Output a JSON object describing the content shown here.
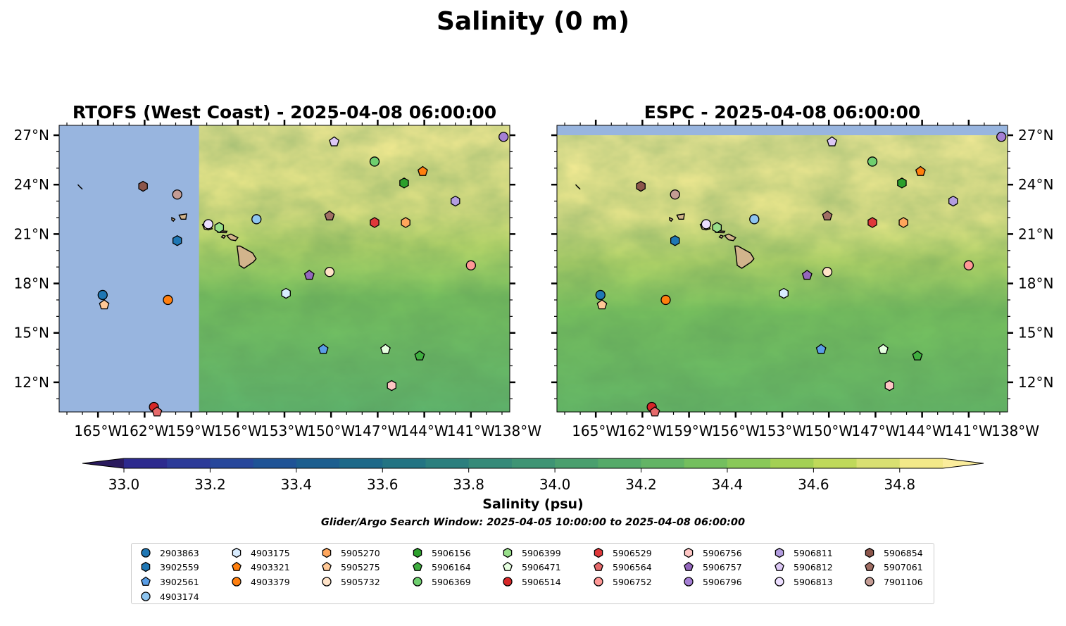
{
  "figure": {
    "suptitle": "Salinity (0 m)",
    "panels": [
      {
        "title": "RTOFS (West Coast) - 2025-04-08 06:00:00"
      },
      {
        "title": "ESPC - 2025-04-08 06:00:00"
      }
    ],
    "colorbar_label": "Salinity (psu)",
    "search_window": "Glider/Argo Search Window: 2025-04-05 10:00:00 to 2025-04-08 06:00:00",
    "colors": {
      "ocean_nodata": "#98b5df",
      "land": "#d2b48c",
      "colormap": [
        "#2a1a5e",
        "#2d2a8e",
        "#2c3a98",
        "#27479b",
        "#1f5396",
        "#1c5e8f",
        "#1d6989",
        "#237483",
        "#2b7f7e",
        "#358a79",
        "#3e9474",
        "#4a9f6e",
        "#55aa69",
        "#63b465",
        "#74bf5e",
        "#89c858",
        "#a3d054",
        "#bfd95a",
        "#d9e072",
        "#f3e989",
        "#fbed9c"
      ]
    }
  },
  "chart_data": {
    "type": "heatmap",
    "title": "Salinity (0 m)",
    "colorbar": {
      "label": "Salinity (psu)",
      "min": 33.0,
      "max": 34.9,
      "step": 0.1,
      "extend": "both",
      "ticks": [
        "33.0",
        "33.2",
        "33.4",
        "33.6",
        "33.8",
        "34.0",
        "34.2",
        "34.4",
        "34.6",
        "34.8"
      ]
    },
    "map": {
      "lon_range": [
        -167.5,
        -138.5
      ],
      "lat_range": [
        10.2,
        27.6
      ],
      "x_ticks": [
        -165,
        -162,
        -159,
        -156,
        -153,
        -150,
        -147,
        -144,
        -141,
        -138
      ],
      "x_tick_labels": [
        "165°W",
        "162°W",
        "159°W",
        "156°W",
        "153°W",
        "150°W",
        "147°W",
        "144°W",
        "141°W",
        "138°W"
      ],
      "y_ticks": [
        12,
        15,
        18,
        21,
        24,
        27
      ],
      "y_tick_labels": [
        "12°N",
        "15°N",
        "18°N",
        "21°N",
        "24°N",
        "27°N"
      ]
    },
    "panels": [
      {
        "name": "RTOFS (West Coast)",
        "time": "2025-04-08 06:00:00",
        "no_data_west_of_lon": -158.5,
        "no_data_north_of_lat": null
      },
      {
        "name": "ESPC",
        "time": "2025-04-08 06:00:00",
        "no_data_west_of_lon": null,
        "no_data_north_of_lat": 27.0
      }
    ],
    "platforms": [
      {
        "id": "2903863",
        "marker": "circle",
        "color": "#1f77b4",
        "lon": -164.7,
        "lat": 17.3
      },
      {
        "id": "3902559",
        "marker": "hexagon",
        "color": "#1f77b4",
        "lon": -159.9,
        "lat": 20.6
      },
      {
        "id": "3902561",
        "marker": "pentagon",
        "color": "#5a9ee6",
        "lon": -150.5,
        "lat": 14.0
      },
      {
        "id": "4903174",
        "marker": "circle",
        "color": "#8ec5f0",
        "lon": -154.8,
        "lat": 21.9
      },
      {
        "id": "4903175",
        "marker": "hexagon",
        "color": "#d8ecff",
        "lon": -152.9,
        "lat": 17.4
      },
      {
        "id": "4903321",
        "marker": "pentagon",
        "color": "#ff7f0e",
        "lon": -144.1,
        "lat": 24.8
      },
      {
        "id": "4903379",
        "marker": "circle",
        "color": "#ff7f0e",
        "lon": -160.5,
        "lat": 17.0
      },
      {
        "id": "5905270",
        "marker": "hexagon",
        "color": "#ffa65c",
        "lon": -145.2,
        "lat": 21.7
      },
      {
        "id": "5905275",
        "marker": "pentagon",
        "color": "#ffc896",
        "lon": -164.6,
        "lat": 16.7
      },
      {
        "id": "5905732",
        "marker": "circle",
        "color": "#ffe3c8",
        "lon": -150.1,
        "lat": 18.7
      },
      {
        "id": "5906156",
        "marker": "hexagon",
        "color": "#2ca02c",
        "lon": -145.3,
        "lat": 24.1
      },
      {
        "id": "5906164",
        "marker": "pentagon",
        "color": "#3fae3f",
        "lon": -144.3,
        "lat": 13.6
      },
      {
        "id": "5906369",
        "marker": "circle",
        "color": "#6fcf6f",
        "lon": -147.2,
        "lat": 25.4
      },
      {
        "id": "5906399",
        "marker": "hexagon",
        "color": "#98df8a",
        "lon": -157.2,
        "lat": 21.4
      },
      {
        "id": "5906471",
        "marker": "pentagon",
        "color": "#e6ffe0",
        "lon": -146.5,
        "lat": 14.0
      },
      {
        "id": "5906514",
        "marker": "circle",
        "color": "#d62728",
        "lon": -161.4,
        "lat": 10.5
      },
      {
        "id": "5906529",
        "marker": "hexagon",
        "color": "#e0383a",
        "lon": -147.2,
        "lat": 21.7
      },
      {
        "id": "5906564",
        "marker": "pentagon",
        "color": "#e66a6b",
        "lon": -161.2,
        "lat": 10.2
      },
      {
        "id": "5906752",
        "marker": "circle",
        "color": "#ff9896",
        "lon": -141.0,
        "lat": 19.1
      },
      {
        "id": "5906756",
        "marker": "hexagon",
        "color": "#ffc6c4",
        "lon": -146.1,
        "lat": 11.8
      },
      {
        "id": "5906757",
        "marker": "pentagon",
        "color": "#9467bd",
        "lon": -151.4,
        "lat": 18.5
      },
      {
        "id": "5906796",
        "marker": "circle",
        "color": "#a57fd4",
        "lon": -138.9,
        "lat": 26.9
      },
      {
        "id": "5906811",
        "marker": "hexagon",
        "color": "#b39de0",
        "lon": -142.0,
        "lat": 23.0
      },
      {
        "id": "5906812",
        "marker": "pentagon",
        "color": "#dcc8f5",
        "lon": -149.8,
        "lat": 26.6
      },
      {
        "id": "5906813",
        "marker": "circle",
        "color": "#ecdeff",
        "lon": -157.9,
        "lat": 21.6
      },
      {
        "id": "5906854",
        "marker": "hexagon",
        "color": "#8c564b",
        "lon": -162.1,
        "lat": 23.9
      },
      {
        "id": "5907061",
        "marker": "pentagon",
        "color": "#a06e64",
        "lon": -150.1,
        "lat": 22.1
      },
      {
        "id": "7901106",
        "marker": "circle",
        "color": "#c49c94",
        "lon": -159.9,
        "lat": 23.4
      }
    ]
  }
}
